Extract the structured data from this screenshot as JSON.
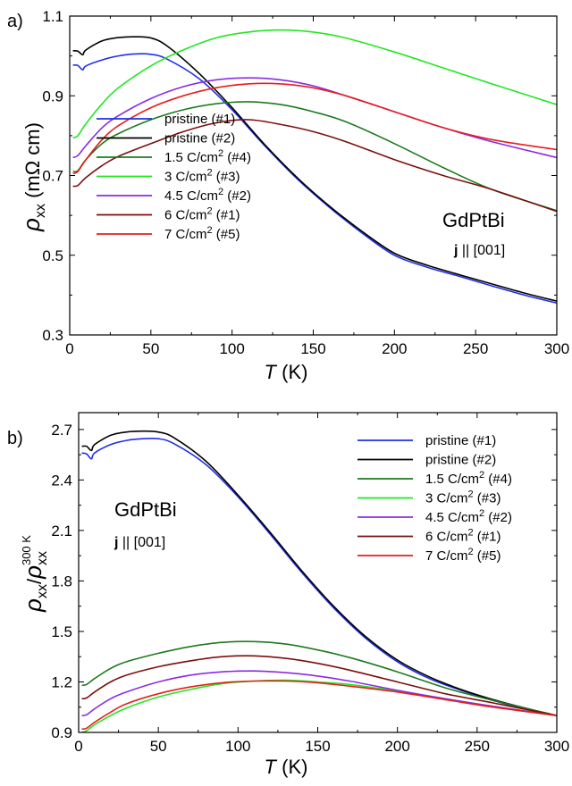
{
  "chart_data": [
    {
      "panel": "a)",
      "type": "line",
      "xlabel": "T (K)",
      "ylabel": "ρxx (mΩ cm)",
      "xlim": [
        0,
        300
      ],
      "ylim": [
        0.3,
        1.1
      ],
      "xticks": [
        0,
        50,
        100,
        150,
        200,
        250,
        300
      ],
      "yticks": [
        0.3,
        0.5,
        0.7,
        0.9,
        1.1
      ],
      "legend_position": "bottom-left",
      "annotations": {
        "material": "GdPtBi",
        "direction": "j || [001]"
      },
      "series": [
        {
          "name": "pristine (#1)",
          "color": "#1f2fe6",
          "x": [
            2,
            5,
            8,
            10,
            20,
            30,
            40,
            50,
            60,
            80,
            100,
            120,
            140,
            160,
            180,
            200,
            220,
            240,
            260,
            280,
            300
          ],
          "y": [
            0.977,
            0.976,
            0.965,
            0.975,
            0.99,
            1.0,
            1.005,
            1.004,
            0.992,
            0.942,
            0.865,
            0.775,
            0.692,
            0.62,
            0.556,
            0.5,
            0.47,
            0.447,
            0.423,
            0.4,
            0.38
          ]
        },
        {
          "name": "pristine (#2)",
          "color": "#000000",
          "x": [
            2,
            5,
            8,
            10,
            20,
            30,
            40,
            50,
            60,
            80,
            100,
            120,
            140,
            160,
            180,
            200,
            220,
            240,
            260,
            280,
            300
          ],
          "y": [
            1.013,
            1.012,
            1.003,
            1.015,
            1.038,
            1.046,
            1.048,
            1.045,
            1.025,
            0.955,
            0.87,
            0.778,
            0.695,
            0.623,
            0.56,
            0.505,
            0.475,
            0.451,
            0.428,
            0.405,
            0.385
          ]
        },
        {
          "name": "1.5 C/cm2 (#4)",
          "color": "#1e7a1e",
          "x": [
            2,
            5,
            10,
            20,
            30,
            50,
            70,
            90,
            110,
            130,
            150,
            170,
            200,
            230,
            260,
            300
          ],
          "y": [
            0.71,
            0.712,
            0.74,
            0.78,
            0.805,
            0.84,
            0.865,
            0.88,
            0.885,
            0.878,
            0.86,
            0.835,
            0.78,
            0.72,
            0.665,
            0.612
          ]
        },
        {
          "name": "3 C/cm2 (#3)",
          "color": "#22e622",
          "x": [
            2,
            5,
            10,
            20,
            30,
            50,
            70,
            90,
            110,
            130,
            150,
            170,
            200,
            230,
            260,
            300
          ],
          "y": [
            0.795,
            0.8,
            0.83,
            0.88,
            0.92,
            0.975,
            1.015,
            1.045,
            1.06,
            1.065,
            1.06,
            1.045,
            1.01,
            0.97,
            0.93,
            0.878
          ]
        },
        {
          "name": "4.5 C/cm2 (#2)",
          "color": "#8a2be2",
          "x": [
            2,
            5,
            10,
            20,
            30,
            50,
            70,
            90,
            110,
            130,
            150,
            170,
            200,
            230,
            260,
            300
          ],
          "y": [
            0.745,
            0.75,
            0.775,
            0.82,
            0.85,
            0.893,
            0.923,
            0.94,
            0.945,
            0.94,
            0.925,
            0.9,
            0.86,
            0.82,
            0.785,
            0.745
          ]
        },
        {
          "name": "6 C/cm2 (#1)",
          "color": "#7a0f0f",
          "x": [
            2,
            5,
            10,
            20,
            30,
            50,
            70,
            90,
            110,
            130,
            150,
            170,
            200,
            230,
            260,
            300
          ],
          "y": [
            0.673,
            0.675,
            0.695,
            0.725,
            0.748,
            0.78,
            0.81,
            0.832,
            0.84,
            0.828,
            0.81,
            0.785,
            0.74,
            0.7,
            0.665,
            0.61
          ]
        },
        {
          "name": "7 C/cm2 (#5)",
          "color": "#e61e1e",
          "x": [
            2,
            5,
            10,
            20,
            30,
            50,
            70,
            90,
            110,
            130,
            150,
            170,
            200,
            230,
            260,
            300
          ],
          "y": [
            0.705,
            0.71,
            0.74,
            0.79,
            0.825,
            0.87,
            0.9,
            0.92,
            0.93,
            0.93,
            0.92,
            0.9,
            0.86,
            0.82,
            0.79,
            0.765
          ]
        }
      ]
    },
    {
      "panel": "b)",
      "type": "line",
      "xlabel": "T (K)",
      "ylabel": "ρxx/ρxx300 K",
      "xlim": [
        0,
        300
      ],
      "ylim": [
        0.9,
        2.8
      ],
      "xticks": [
        0,
        50,
        100,
        150,
        200,
        250,
        300
      ],
      "yticks": [
        0.9,
        1.2,
        1.5,
        1.8,
        2.1,
        2.4,
        2.7
      ],
      "legend_position": "top-right",
      "annotations": {
        "material": "GdPtBi",
        "direction": "j || [001]"
      },
      "series": [
        {
          "name": "pristine (#1)",
          "color": "#1f2fe6",
          "x": [
            2,
            5,
            8,
            10,
            20,
            30,
            40,
            50,
            60,
            80,
            100,
            120,
            140,
            160,
            180,
            200,
            220,
            240,
            260,
            280,
            300
          ],
          "y": [
            2.56,
            2.555,
            2.525,
            2.56,
            2.61,
            2.635,
            2.645,
            2.645,
            2.615,
            2.49,
            2.3,
            2.08,
            1.85,
            1.64,
            1.46,
            1.32,
            1.22,
            1.15,
            1.09,
            1.04,
            1.0
          ]
        },
        {
          "name": "pristine (#2)",
          "color": "#000000",
          "x": [
            2,
            5,
            8,
            10,
            20,
            30,
            40,
            50,
            60,
            80,
            100,
            120,
            140,
            160,
            180,
            200,
            220,
            240,
            260,
            280,
            300
          ],
          "y": [
            2.6,
            2.6,
            2.575,
            2.61,
            2.665,
            2.685,
            2.69,
            2.685,
            2.65,
            2.51,
            2.31,
            2.09,
            1.86,
            1.65,
            1.47,
            1.33,
            1.23,
            1.155,
            1.095,
            1.045,
            1.0
          ]
        },
        {
          "name": "1.5 C/cm2 (#4)",
          "color": "#1e7a1e",
          "x": [
            2,
            5,
            10,
            20,
            30,
            50,
            70,
            90,
            110,
            130,
            150,
            170,
            200,
            230,
            260,
            300
          ],
          "y": [
            1.18,
            1.185,
            1.22,
            1.28,
            1.32,
            1.37,
            1.41,
            1.435,
            1.44,
            1.425,
            1.39,
            1.345,
            1.26,
            1.165,
            1.09,
            1.0
          ]
        },
        {
          "name": "3 C/cm2 (#3)",
          "color": "#22e622",
          "x": [
            2,
            5,
            10,
            20,
            30,
            50,
            70,
            90,
            110,
            130,
            150,
            170,
            200,
            230,
            260,
            300
          ],
          "y": [
            0.9,
            0.91,
            0.945,
            1.0,
            1.045,
            1.11,
            1.155,
            1.19,
            1.205,
            1.21,
            1.2,
            1.185,
            1.145,
            1.1,
            1.055,
            1.0
          ]
        },
        {
          "name": "4.5 C/cm2 (#2)",
          "color": "#8a2be2",
          "x": [
            2,
            5,
            10,
            20,
            30,
            50,
            70,
            90,
            110,
            130,
            150,
            170,
            200,
            230,
            260,
            300
          ],
          "y": [
            1.0,
            1.005,
            1.04,
            1.1,
            1.14,
            1.2,
            1.24,
            1.26,
            1.265,
            1.255,
            1.235,
            1.205,
            1.15,
            1.1,
            1.055,
            1.0
          ]
        },
        {
          "name": "6 C/cm2 (#1)",
          "color": "#7a0f0f",
          "x": [
            2,
            5,
            10,
            20,
            30,
            50,
            70,
            90,
            110,
            130,
            150,
            170,
            200,
            230,
            260,
            300
          ],
          "y": [
            1.1,
            1.105,
            1.14,
            1.2,
            1.24,
            1.29,
            1.325,
            1.35,
            1.355,
            1.34,
            1.31,
            1.27,
            1.2,
            1.13,
            1.075,
            1.0
          ]
        },
        {
          "name": "7 C/cm2 (#5)",
          "color": "#e61e1e",
          "x": [
            2,
            5,
            10,
            20,
            30,
            50,
            70,
            90,
            110,
            130,
            150,
            170,
            200,
            230,
            260,
            300
          ],
          "y": [
            0.92,
            0.925,
            0.96,
            1.02,
            1.07,
            1.13,
            1.17,
            1.195,
            1.205,
            1.205,
            1.195,
            1.175,
            1.14,
            1.095,
            1.05,
            1.0
          ]
        }
      ]
    }
  ]
}
